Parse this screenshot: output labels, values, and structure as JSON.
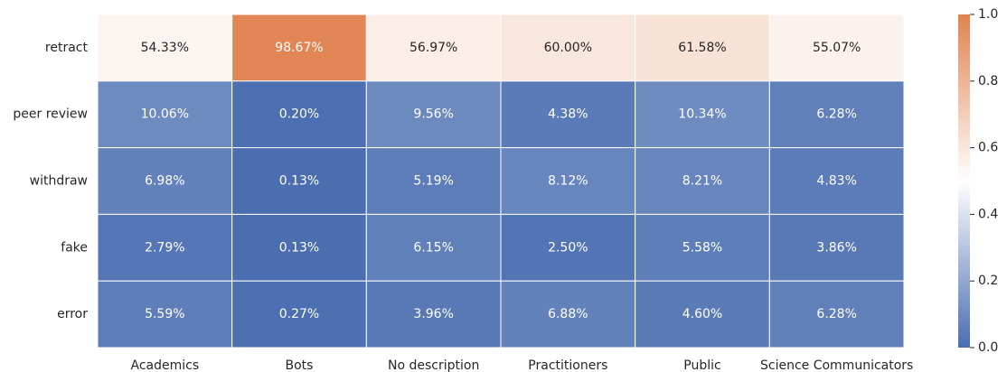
{
  "chart_data": {
    "type": "heatmap",
    "rows": [
      "retract",
      "peer review",
      "withdraw",
      "fake",
      "error"
    ],
    "categories": [
      "Academics",
      "Bots",
      "No description",
      "Practitioners",
      "Public",
      "Science Communicators"
    ],
    "values": [
      [
        0.5433,
        0.9867,
        0.5697,
        0.6,
        0.6158,
        0.5507
      ],
      [
        0.1006,
        0.002,
        0.0956,
        0.0438,
        0.1034,
        0.0628
      ],
      [
        0.0698,
        0.0013,
        0.0519,
        0.0812,
        0.0821,
        0.0483
      ],
      [
        0.0279,
        0.0013,
        0.0615,
        0.025,
        0.0558,
        0.0386
      ],
      [
        0.0559,
        0.0027,
        0.0396,
        0.0688,
        0.046,
        0.0628
      ]
    ],
    "value_labels": [
      [
        "54.33%",
        "98.67%",
        "56.97%",
        "60.00%",
        "61.58%",
        "55.07%"
      ],
      [
        "10.06%",
        "0.20%",
        "9.56%",
        "4.38%",
        "10.34%",
        "6.28%"
      ],
      [
        "6.98%",
        "0.13%",
        "5.19%",
        "8.12%",
        "8.21%",
        "4.83%"
      ],
      [
        "2.79%",
        "0.13%",
        "6.15%",
        "2.50%",
        "5.58%",
        "3.86%"
      ],
      [
        "5.59%",
        "0.27%",
        "3.96%",
        "6.88%",
        "4.60%",
        "6.28%"
      ]
    ],
    "colormap": [
      "#4a6eb0",
      "#ffffff",
      "#e0834f"
    ],
    "clim": [
      0,
      1
    ],
    "cticks": [
      {
        "value": 0,
        "label": "0.0"
      },
      0.2,
      0.4,
      0.6,
      0.8,
      {
        "value": 1,
        "label": "1.0"
      }
    ]
  }
}
